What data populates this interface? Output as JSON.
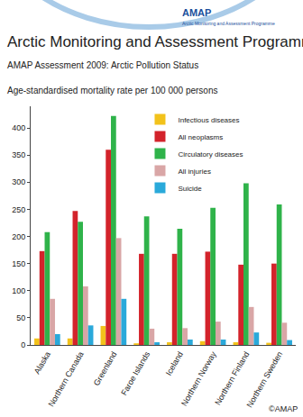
{
  "chart_data": {
    "type": "bar",
    "title": "Arctic Monitoring and Assessment Programme",
    "subtitle": "AMAP Assessment 2009: Arctic Pollution Status",
    "y_label": "Age-standardised mortality rate per 100 000 persons",
    "annotations": [
      "AMAP",
      "Arctic Monitoring and Assessment Programme",
      "©AMAP"
    ],
    "categories": [
      "Alaska",
      "Northern Canada",
      "Greenland",
      "Faroe Islands",
      "Iceland",
      "Northern Norway",
      "Northern Finland",
      "Northern Sweden"
    ],
    "series": [
      {
        "name": "Infectious diseases",
        "color": "#f2c21b",
        "values": [
          12,
          12,
          35,
          3,
          5,
          7,
          5,
          4
        ]
      },
      {
        "name": "All neoplasms",
        "color": "#d3232b",
        "values": [
          173,
          247,
          360,
          168,
          168,
          172,
          148,
          150
        ]
      },
      {
        "name": "Circulatory diseases",
        "color": "#2fb34a",
        "values": [
          208,
          227,
          422,
          237,
          214,
          253,
          298,
          259
        ]
      },
      {
        "name": "All injuries",
        "color": "#d9a6a6",
        "values": [
          85,
          108,
          197,
          30,
          31,
          43,
          70,
          41
        ]
      },
      {
        "name": "Suicide",
        "color": "#2aa9da",
        "values": [
          20,
          36,
          85,
          5,
          10,
          10,
          23,
          9
        ]
      }
    ],
    "ylim": [
      0,
      440
    ],
    "yticks": [
      0,
      50,
      100,
      150,
      200,
      250,
      300,
      350,
      400
    ],
    "grid": false,
    "legend": "top"
  }
}
